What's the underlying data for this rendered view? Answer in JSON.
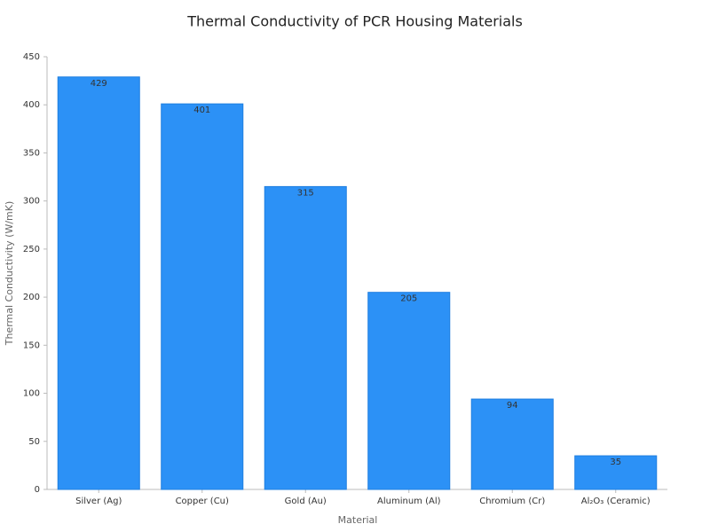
{
  "chart_data": {
    "type": "bar",
    "title": "Thermal Conductivity of PCR Housing Materials",
    "x_label": "Material",
    "y_label": "Thermal Conductivity (W/mK)",
    "categories": [
      "Silver (Ag)",
      "Copper (Cu)",
      "Gold (Au)",
      "Aluminum (Al)",
      "Chromium (Cr)",
      "Al₂O₃ (Ceramic)"
    ],
    "values": [
      429,
      401,
      315,
      205,
      94,
      35
    ],
    "color": "#2c91f6",
    "ylim": [
      0,
      450
    ],
    "yticks": [
      0,
      50,
      100,
      150,
      200,
      250,
      300,
      350,
      400,
      450
    ],
    "grid": false
  }
}
